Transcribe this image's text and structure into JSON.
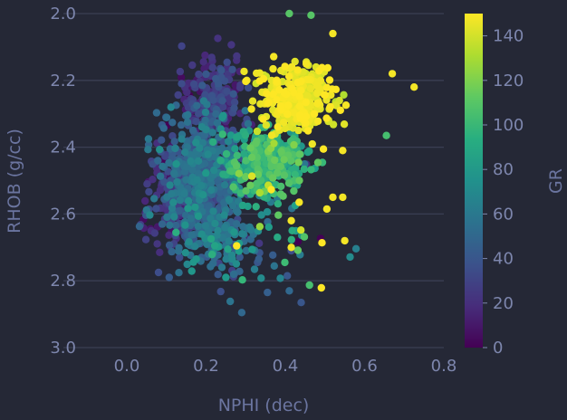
{
  "chart_data": {
    "type": "scatter",
    "title": "",
    "xlabel": "NPHI (dec)",
    "ylabel": "RHOB (g/cc)",
    "xlim": [
      -0.16,
      0.8
    ],
    "ylim": [
      3.0,
      2.0
    ],
    "y_inverted": true,
    "xticks": [
      "0.0",
      "0.2",
      "0.4",
      "0.6",
      "0.8"
    ],
    "xtick_values": [
      0.0,
      0.2,
      0.4,
      0.6,
      0.8
    ],
    "yticks": [
      "2.0",
      "2.2",
      "2.4",
      "2.6",
      "2.8",
      "3.0"
    ],
    "ytick_values": [
      2.0,
      2.2,
      2.4,
      2.6,
      2.8,
      3.0
    ],
    "grid": "horizontal",
    "background": "#252836",
    "colorbar": {
      "label": "GR",
      "colormap": "viridis",
      "range": [
        0,
        150
      ],
      "ticks": [
        "0",
        "20",
        "40",
        "60",
        "80",
        "100",
        "120",
        "140"
      ],
      "tick_values": [
        0,
        20,
        40,
        60,
        80,
        100,
        120,
        140
      ]
    },
    "point_groups_note_free": true,
    "clusters": [
      {
        "cx": 0.19,
        "cy": 2.49,
        "sx": 0.055,
        "sy": 0.1,
        "gr": 45,
        "gr_sd": 14,
        "n": 650
      },
      {
        "cx": 0.22,
        "cy": 2.24,
        "sx": 0.04,
        "sy": 0.06,
        "gr": 25,
        "gr_sd": 10,
        "n": 180
      },
      {
        "cx": 0.12,
        "cy": 2.58,
        "sx": 0.035,
        "sy": 0.06,
        "gr": 20,
        "gr_sd": 10,
        "n": 110
      },
      {
        "cx": 0.35,
        "cy": 2.45,
        "sx": 0.05,
        "sy": 0.05,
        "gr": 95,
        "gr_sd": 12,
        "n": 300
      },
      {
        "cx": 0.43,
        "cy": 2.26,
        "sx": 0.05,
        "sy": 0.05,
        "gr": 145,
        "gr_sd": 4,
        "n": 320
      },
      {
        "cx": 0.24,
        "cy": 2.68,
        "sx": 0.05,
        "sy": 0.06,
        "gr": 55,
        "gr_sd": 14,
        "n": 120
      },
      {
        "cx": 0.4,
        "cy": 2.6,
        "sx": 0.08,
        "sy": 0.14,
        "gr": 90,
        "gr_sd": 40,
        "n": 45
      }
    ],
    "outliers": [
      {
        "x": 0.41,
        "y": 2.0,
        "gr": 110
      },
      {
        "x": 0.465,
        "y": 2.005,
        "gr": 110
      },
      {
        "x": 0.52,
        "y": 2.06,
        "gr": 148
      },
      {
        "x": 0.67,
        "y": 2.18,
        "gr": 148
      },
      {
        "x": 0.725,
        "y": 2.22,
        "gr": 148
      },
      {
        "x": 0.655,
        "y": 2.365,
        "gr": 105
      },
      {
        "x": 0.55,
        "y": 2.68,
        "gr": 148
      },
      {
        "x": 0.505,
        "y": 2.585,
        "gr": 148
      },
      {
        "x": 0.52,
        "y": 2.55,
        "gr": 148
      },
      {
        "x": 0.545,
        "y": 2.55,
        "gr": 148
      },
      {
        "x": 0.415,
        "y": 2.62,
        "gr": 148
      },
      {
        "x": 0.415,
        "y": 2.7,
        "gr": 148
      },
      {
        "x": 0.435,
        "y": 2.565,
        "gr": 148
      },
      {
        "x": 0.545,
        "y": 2.41,
        "gr": 148
      },
      {
        "x": 0.29,
        "y": 2.895,
        "gr": 50
      },
      {
        "x": 0.355,
        "y": 2.835,
        "gr": 45
      },
      {
        "x": 0.44,
        "y": 2.865,
        "gr": 40
      },
      {
        "x": 0.41,
        "y": 2.83,
        "gr": 50
      },
      {
        "x": 0.405,
        "y": 2.785,
        "gr": 40
      },
      {
        "x": 0.33,
        "y": 2.745,
        "gr": 40
      },
      {
        "x": 0.415,
        "y": 2.71,
        "gr": 35
      },
      {
        "x": 0.38,
        "y": 2.67,
        "gr": 90
      },
      {
        "x": 0.25,
        "y": 2.79,
        "gr": 80
      },
      {
        "x": 0.24,
        "y": 2.76,
        "gr": 60
      },
      {
        "x": 0.175,
        "y": 2.735,
        "gr": 80
      },
      {
        "x": 0.08,
        "y": 2.775,
        "gr": 35
      }
    ]
  }
}
